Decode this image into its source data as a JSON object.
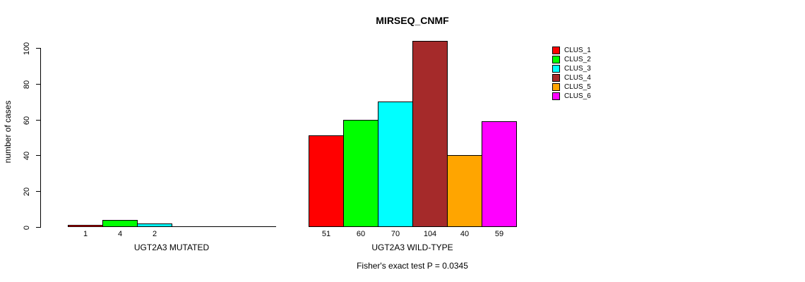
{
  "chart_data": {
    "type": "bar",
    "title": "MIRSEQ_CNMF",
    "ylabel": "number of cases",
    "xlabel": "",
    "ylim": [
      0,
      100
    ],
    "yticks": [
      0,
      20,
      40,
      60,
      80,
      100
    ],
    "grid": false,
    "legend_position": "right",
    "series_names": [
      "CLUS_1",
      "CLUS_2",
      "CLUS_3",
      "CLUS_4",
      "CLUS_5",
      "CLUS_6"
    ],
    "series_colors": [
      "#FF0000",
      "#00FF00",
      "#00FFFF",
      "#A52A2A",
      "#FFA500",
      "#FF00FF"
    ],
    "groups": [
      {
        "label": "UGT2A3 MUTATED",
        "values": [
          1,
          4,
          2,
          0,
          0,
          0
        ],
        "value_labels": [
          "1",
          "4",
          "2",
          "",
          "",
          ""
        ]
      },
      {
        "label": "UGT2A3 WILD-TYPE",
        "values": [
          51,
          60,
          70,
          104,
          40,
          59
        ],
        "value_labels": [
          "51",
          "60",
          "70",
          "104",
          "40",
          "59"
        ]
      }
    ],
    "annotation": "Fisher's exact test P = 0.0345"
  },
  "legend": {
    "items": [
      {
        "label": "CLUS_1",
        "color": "#FF0000"
      },
      {
        "label": "CLUS_2",
        "color": "#00FF00"
      },
      {
        "label": "CLUS_3",
        "color": "#00FFFF"
      },
      {
        "label": "CLUS_4",
        "color": "#A52A2A"
      },
      {
        "label": "CLUS_5",
        "color": "#FFA500"
      },
      {
        "label": "CLUS_6",
        "color": "#FF00FF"
      }
    ]
  }
}
